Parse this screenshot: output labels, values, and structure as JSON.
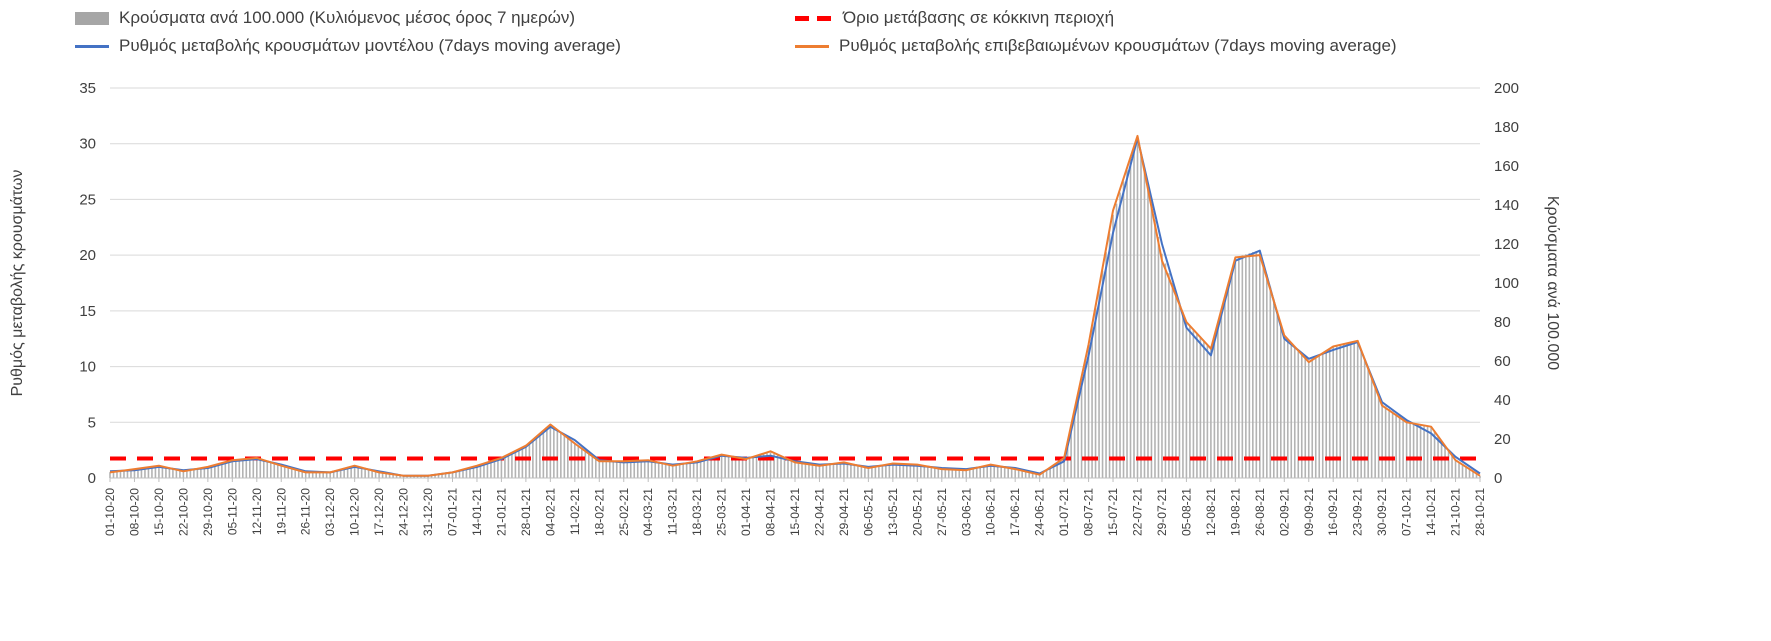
{
  "legend": {
    "items": [
      {
        "label": "Κρούσματα ανά 100.000 (Κυλιόμενος μέσος όρος 7 ημερών)",
        "marker": "bar",
        "color": "#a6a6a6"
      },
      {
        "label": "Όριο μετάβασης σε κόκκινη περιοχή",
        "marker": "dashed-line",
        "color": "#ff0000"
      },
      {
        "label": "Ρυθμός μεταβολής κρουσμάτων μοντέλου (7days moving average)",
        "marker": "line",
        "color": "#4472c4"
      },
      {
        "label": "Ρυθμός μεταβολής επιβεβαιωμένων κρουσμάτων (7days moving average)",
        "marker": "line",
        "color": "#ed7d31"
      }
    ]
  },
  "chart_data": {
    "type": "combo",
    "legend_position": "top",
    "grid": true,
    "grid_color": "#d9d9d9",
    "axis_color": "#bfbfbf",
    "x": [
      "01-10-20",
      "08-10-20",
      "15-10-20",
      "22-10-20",
      "29-10-20",
      "05-11-20",
      "12-11-20",
      "19-11-20",
      "26-11-20",
      "03-12-20",
      "10-12-20",
      "17-12-20",
      "24-12-20",
      "31-12-20",
      "07-01-21",
      "14-01-21",
      "21-01-21",
      "28-01-21",
      "04-02-21",
      "11-02-21",
      "18-02-21",
      "25-02-21",
      "04-03-21",
      "11-03-21",
      "18-03-21",
      "25-03-21",
      "01-04-21",
      "08-04-21",
      "15-04-21",
      "22-04-21",
      "29-04-21",
      "06-05-21",
      "13-05-21",
      "20-05-21",
      "27-05-21",
      "03-06-21",
      "10-06-21",
      "17-06-21",
      "24-06-21",
      "01-07-21",
      "08-07-21",
      "15-07-21",
      "22-07-21",
      "29-07-21",
      "05-08-21",
      "12-08-21",
      "19-08-21",
      "26-08-21",
      "02-09-21",
      "09-09-21",
      "16-09-21",
      "23-09-21",
      "30-09-21",
      "07-10-21",
      "14-10-21",
      "21-10-21",
      "28-10-21"
    ],
    "left_axis": {
      "label": "Ρυθμός μεταβολής κρουσμάτων",
      "min": 0,
      "max": 35,
      "ticks": [
        0,
        5,
        10,
        15,
        20,
        25,
        30,
        35
      ]
    },
    "right_axis": {
      "label": "Κρούσματα ανά 100.000",
      "min": 0,
      "max": 200,
      "ticks": [
        0,
        20,
        40,
        60,
        80,
        100,
        120,
        140,
        160,
        180,
        200
      ]
    },
    "threshold_line": {
      "name": "Όριο μετάβασης σε κόκκινη περιοχή",
      "axis": "right",
      "value": 10,
      "color": "#ff0000",
      "style": "dashed"
    },
    "series": [
      {
        "name": "Κρούσματα ανά 100.000 (Κυλιόμενος μέσος όρος 7 ημερών)",
        "type": "bar",
        "axis": "right",
        "color": "#b3b3b3",
        "values": [
          3,
          4,
          6,
          4,
          5,
          9,
          10,
          7,
          3,
          3,
          6,
          3,
          1,
          1,
          3,
          6,
          10,
          17,
          27,
          18,
          9,
          8,
          9,
          7,
          8,
          12,
          10,
          13,
          8,
          7,
          8,
          5,
          7,
          7,
          5,
          4,
          7,
          5,
          2,
          10,
          68,
          135,
          175,
          115,
          80,
          66,
          113,
          117,
          73,
          60,
          67,
          70,
          38,
          29,
          26,
          9,
          1
        ]
      },
      {
        "name": "Ρυθμός μεταβολής κρουσμάτων μοντέλου (7days moving average)",
        "type": "line",
        "axis": "left",
        "color": "#4472c4",
        "values": [
          0.6,
          0.7,
          1.0,
          0.7,
          0.9,
          1.5,
          1.7,
          1.2,
          0.6,
          0.5,
          1.0,
          0.6,
          0.2,
          0.2,
          0.5,
          1.0,
          1.7,
          2.8,
          4.6,
          3.4,
          1.6,
          1.4,
          1.5,
          1.2,
          1.4,
          2.0,
          1.8,
          2.0,
          1.5,
          1.2,
          1.3,
          1.0,
          1.2,
          1.1,
          0.9,
          0.8,
          1.1,
          0.9,
          0.4,
          1.5,
          11.0,
          22.0,
          30.5,
          21.0,
          13.5,
          11.0,
          19.5,
          20.4,
          12.5,
          10.7,
          11.5,
          12.2,
          6.8,
          5.2,
          4.0,
          1.9,
          0.4
        ]
      },
      {
        "name": "Ρυθμός μεταβολής επιβεβαιωμένων κρουσμάτων (7days moving average)",
        "type": "line",
        "axis": "left",
        "color": "#ed7d31",
        "values": [
          0.5,
          0.8,
          1.1,
          0.6,
          1.0,
          1.6,
          1.8,
          1.1,
          0.5,
          0.5,
          1.1,
          0.5,
          0.2,
          0.2,
          0.5,
          1.1,
          1.8,
          2.9,
          4.8,
          3.1,
          1.5,
          1.5,
          1.6,
          1.1,
          1.5,
          2.1,
          1.7,
          2.4,
          1.4,
          1.1,
          1.4,
          0.9,
          1.3,
          1.2,
          0.8,
          0.7,
          1.2,
          0.8,
          0.3,
          1.8,
          12.0,
          24.0,
          30.7,
          19.5,
          14.0,
          11.6,
          19.8,
          20.0,
          12.8,
          10.4,
          11.8,
          12.3,
          6.5,
          5.0,
          4.6,
          1.6,
          0.2
        ]
      }
    ]
  }
}
